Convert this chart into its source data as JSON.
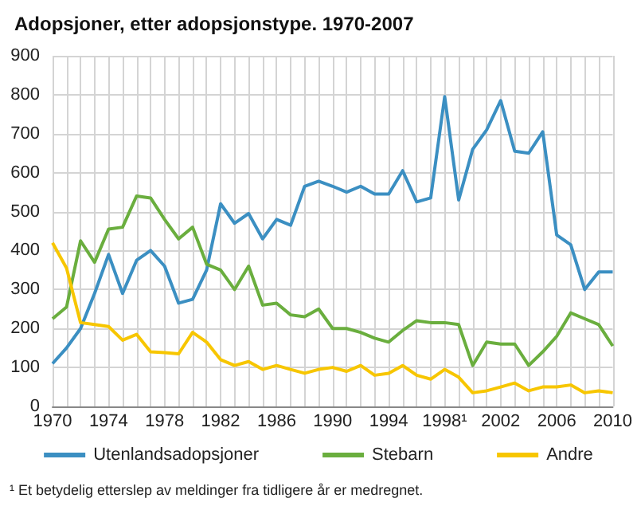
{
  "chart_data": {
    "type": "line",
    "title": "Adopsjoner, etter adopsjonstype. 1970-2007",
    "categories": [
      "1970",
      null,
      null,
      null,
      "1974",
      null,
      null,
      null,
      "1978",
      null,
      null,
      null,
      "1982",
      null,
      null,
      null,
      "1986",
      null,
      null,
      null,
      "1990",
      null,
      null,
      null,
      "1994",
      null,
      null,
      null,
      "1998¹",
      null,
      null,
      null,
      "2002",
      null,
      null,
      null,
      "2006",
      null,
      null,
      null,
      "2010"
    ],
    "series": [
      {
        "name": "Utenlandsadopsjoner",
        "color": "#3b8fc2",
        "values": [
          110,
          150,
          200,
          290,
          390,
          290,
          375,
          400,
          360,
          265,
          275,
          350,
          520,
          470,
          495,
          430,
          480,
          465,
          565,
          578,
          565,
          550,
          565,
          545,
          545,
          605,
          525,
          535,
          795,
          530,
          660,
          710,
          785,
          655,
          650,
          705,
          440,
          415,
          300,
          345,
          345
        ]
      },
      {
        "name": "Stebarn",
        "color": "#6aae3e",
        "values": [
          225,
          255,
          425,
          370,
          455,
          460,
          540,
          535,
          480,
          430,
          460,
          365,
          350,
          300,
          360,
          260,
          265,
          235,
          230,
          250,
          200,
          200,
          190,
          175,
          165,
          195,
          220,
          215,
          215,
          210,
          105,
          165,
          160,
          160,
          105,
          140,
          180,
          240,
          225,
          210,
          155
        ]
      },
      {
        "name": "Andre",
        "color": "#f7c600",
        "values": [
          420,
          355,
          215,
          210,
          205,
          170,
          185,
          140,
          138,
          135,
          190,
          165,
          120,
          105,
          115,
          95,
          105,
          95,
          85,
          95,
          100,
          90,
          105,
          80,
          85,
          105,
          80,
          70,
          95,
          75,
          35,
          40,
          50,
          60,
          40,
          50,
          50,
          55,
          35,
          40,
          35
        ]
      }
    ],
    "ylim": [
      0,
      900
    ],
    "yticks": [
      0,
      100,
      200,
      300,
      400,
      500,
      600,
      700,
      800,
      900
    ],
    "grid": true,
    "legend": "bottom",
    "annotations": [
      "¹ Et betydelig etterslep av meldinger fra tidligere år er medregnet."
    ]
  }
}
